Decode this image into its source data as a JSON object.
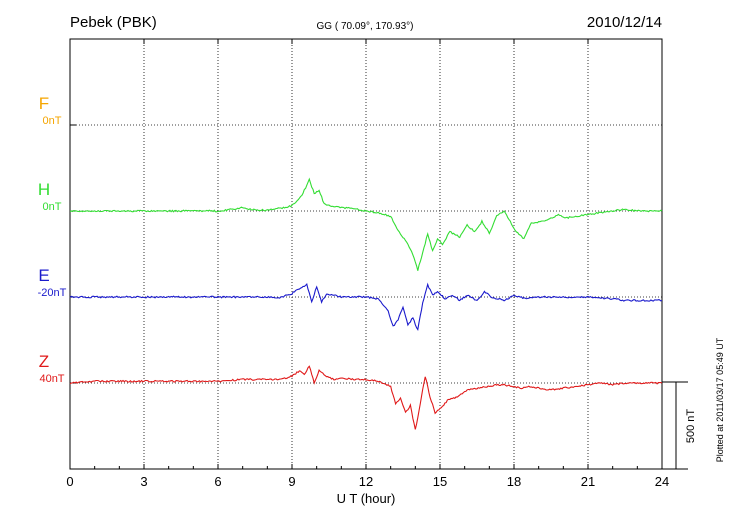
{
  "header": {
    "station": "Pebek (PBK)",
    "coords": "GG ( 70.09°, 170.93°)",
    "date": "2010/12/14"
  },
  "side_note": "Plotted at 2011/03/17 05:49 UT",
  "chart_data": {
    "type": "line",
    "xlabel": "U T (hour)",
    "xlim": [
      0,
      24
    ],
    "xticks": [
      0,
      3,
      6,
      9,
      12,
      15,
      18,
      21,
      24
    ],
    "xtick_labels": [
      "0",
      "3",
      "6",
      "9",
      "12",
      "15",
      "18",
      "21",
      "24"
    ],
    "grid": true,
    "scale_bar": {
      "value_nT": 500,
      "label": "500 nT"
    },
    "series": [
      {
        "name": "F",
        "baseline_label": "0nT",
        "color": "#f5a500",
        "row": 1,
        "points": []
      },
      {
        "name": "H",
        "baseline_label": "0nT",
        "color": "#33dd33",
        "row": 2,
        "points": [
          [
            0,
            0
          ],
          [
            1,
            0
          ],
          [
            2,
            0
          ],
          [
            3,
            0
          ],
          [
            4,
            0
          ],
          [
            5,
            0
          ],
          [
            6,
            0
          ],
          [
            6.6,
            10
          ],
          [
            7,
            20
          ],
          [
            7.5,
            5
          ],
          [
            8,
            5
          ],
          [
            8.5,
            15
          ],
          [
            9,
            30
          ],
          [
            9.4,
            90
          ],
          [
            9.7,
            180
          ],
          [
            9.9,
            100
          ],
          [
            10.1,
            120
          ],
          [
            10.3,
            40
          ],
          [
            10.6,
            25
          ],
          [
            11,
            20
          ],
          [
            11.5,
            15
          ],
          [
            12,
            0
          ],
          [
            12.5,
            -10
          ],
          [
            13,
            -30
          ],
          [
            13.3,
            -110
          ],
          [
            13.5,
            -150
          ],
          [
            13.7,
            -190
          ],
          [
            13.9,
            -250
          ],
          [
            14.1,
            -340
          ],
          [
            14.3,
            -240
          ],
          [
            14.5,
            -130
          ],
          [
            14.7,
            -230
          ],
          [
            14.9,
            -160
          ],
          [
            15.1,
            -190
          ],
          [
            15.4,
            -120
          ],
          [
            15.8,
            -150
          ],
          [
            16.1,
            -80
          ],
          [
            16.4,
            -120
          ],
          [
            16.7,
            -60
          ],
          [
            17,
            -130
          ],
          [
            17.3,
            -30
          ],
          [
            17.6,
            0
          ],
          [
            17.8,
            -50
          ],
          [
            18.1,
            -120
          ],
          [
            18.4,
            -160
          ],
          [
            18.7,
            -70
          ],
          [
            19.1,
            -60
          ],
          [
            19.4,
            -50
          ],
          [
            19.8,
            -20
          ],
          [
            20.1,
            -40
          ],
          [
            20.6,
            -30
          ],
          [
            21,
            -20
          ],
          [
            21.5,
            -10
          ],
          [
            22,
            0
          ],
          [
            22.5,
            10
          ],
          [
            23,
            0
          ],
          [
            24,
            0
          ]
        ]
      },
      {
        "name": "E",
        "baseline_label": "-20nT",
        "color": "#1a1acc",
        "row": 3,
        "points": [
          [
            0,
            0
          ],
          [
            1,
            0
          ],
          [
            2,
            0
          ],
          [
            3,
            0
          ],
          [
            4,
            0
          ],
          [
            5,
            0
          ],
          [
            6,
            0
          ],
          [
            7,
            0
          ],
          [
            8,
            0
          ],
          [
            8.5,
            -5
          ],
          [
            9,
            20
          ],
          [
            9.3,
            50
          ],
          [
            9.6,
            70
          ],
          [
            9.8,
            -30
          ],
          [
            10,
            60
          ],
          [
            10.2,
            -30
          ],
          [
            10.4,
            20
          ],
          [
            10.7,
            10
          ],
          [
            11,
            0
          ],
          [
            12,
            0
          ],
          [
            12.5,
            -10
          ],
          [
            12.9,
            -80
          ],
          [
            13.1,
            -170
          ],
          [
            13.3,
            -130
          ],
          [
            13.5,
            -60
          ],
          [
            13.7,
            -160
          ],
          [
            13.9,
            -120
          ],
          [
            14.1,
            -190
          ],
          [
            14.3,
            -30
          ],
          [
            14.5,
            70
          ],
          [
            14.7,
            10
          ],
          [
            14.9,
            30
          ],
          [
            15.2,
            -10
          ],
          [
            15.5,
            10
          ],
          [
            15.8,
            -20
          ],
          [
            16.1,
            10
          ],
          [
            16.5,
            -20
          ],
          [
            16.8,
            30
          ],
          [
            17.1,
            0
          ],
          [
            17.6,
            -20
          ],
          [
            18,
            10
          ],
          [
            18.5,
            -10
          ],
          [
            19,
            0
          ],
          [
            20,
            0
          ],
          [
            21,
            0
          ],
          [
            22,
            -10
          ],
          [
            22.5,
            -20
          ],
          [
            23,
            -20
          ],
          [
            24,
            -20
          ]
        ]
      },
      {
        "name": "Z",
        "baseline_label": "40nT",
        "color": "#e01919",
        "row": 4,
        "points": [
          [
            0,
            0
          ],
          [
            1,
            10
          ],
          [
            2,
            10
          ],
          [
            3,
            10
          ],
          [
            4,
            10
          ],
          [
            5,
            10
          ],
          [
            6,
            10
          ],
          [
            7,
            20
          ],
          [
            8,
            20
          ],
          [
            8.5,
            20
          ],
          [
            9,
            40
          ],
          [
            9.3,
            70
          ],
          [
            9.5,
            50
          ],
          [
            9.7,
            100
          ],
          [
            9.9,
            0
          ],
          [
            10.1,
            70
          ],
          [
            10.4,
            40
          ],
          [
            10.7,
            20
          ],
          [
            11,
            30
          ],
          [
            11.5,
            20
          ],
          [
            12,
            20
          ],
          [
            12.5,
            10
          ],
          [
            13,
            -20
          ],
          [
            13.2,
            -120
          ],
          [
            13.4,
            -90
          ],
          [
            13.6,
            -170
          ],
          [
            13.8,
            -130
          ],
          [
            14,
            -270
          ],
          [
            14.2,
            -120
          ],
          [
            14.4,
            40
          ],
          [
            14.6,
            -80
          ],
          [
            14.8,
            -170
          ],
          [
            15,
            -150
          ],
          [
            15.3,
            -100
          ],
          [
            15.7,
            -80
          ],
          [
            16.1,
            -40
          ],
          [
            16.5,
            -30
          ],
          [
            16.9,
            -20
          ],
          [
            17.3,
            -10
          ],
          [
            17.6,
            -10
          ],
          [
            18,
            -20
          ],
          [
            18.3,
            -30
          ],
          [
            18.6,
            -20
          ],
          [
            19,
            -30
          ],
          [
            19.5,
            -40
          ],
          [
            20,
            -30
          ],
          [
            20.5,
            -20
          ],
          [
            21,
            -10
          ],
          [
            21.5,
            0
          ],
          [
            22,
            -10
          ],
          [
            22.5,
            0
          ],
          [
            23,
            0
          ],
          [
            24,
            0
          ]
        ]
      }
    ]
  }
}
